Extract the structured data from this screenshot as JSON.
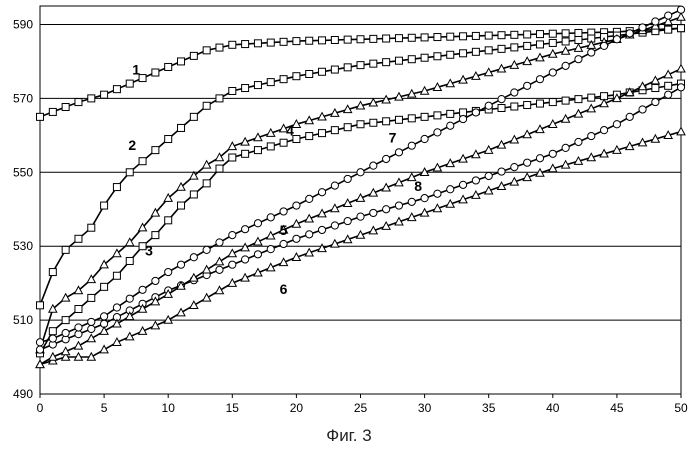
{
  "caption": "Фиг. 3",
  "chart_data": {
    "type": "line",
    "title": "",
    "xlabel": "",
    "ylabel": "",
    "xlim": [
      0,
      50
    ],
    "ylim": [
      490,
      595
    ],
    "x_ticks": [
      0,
      5,
      10,
      15,
      20,
      25,
      30,
      35,
      40,
      45,
      50
    ],
    "y_ticks": [
      490,
      510,
      530,
      550,
      570,
      590
    ],
    "grid": "horizontal",
    "legend": "none",
    "colors": {
      "line": "#000000",
      "grid": "#000000",
      "marker_fill": "#ffffff"
    },
    "series": [
      {
        "name": "1",
        "marker": "square",
        "x": [
          0,
          1.5,
          3,
          5,
          7,
          9,
          11,
          13,
          15,
          20,
          25,
          30,
          35,
          40,
          45,
          50
        ],
        "y": [
          565,
          567,
          569,
          571,
          574,
          577,
          580,
          583,
          584.5,
          585.5,
          586,
          586.5,
          587,
          587.5,
          588,
          589
        ]
      },
      {
        "name": "2",
        "marker": "square",
        "x": [
          0,
          1,
          2,
          3,
          4,
          5,
          6,
          7,
          8,
          9,
          10,
          11,
          12,
          13,
          14,
          15,
          20,
          25,
          30,
          35,
          40,
          45,
          50
        ],
        "y": [
          514,
          523,
          529,
          532,
          535,
          541,
          546,
          550,
          553,
          556,
          559,
          562,
          565,
          568,
          570,
          572,
          576,
          579,
          581,
          583,
          585,
          587,
          589
        ]
      },
      {
        "name": "3",
        "marker": "square",
        "x": [
          0,
          1,
          2,
          3,
          4,
          5,
          6,
          7,
          8,
          9,
          10,
          11,
          12,
          13,
          14,
          15,
          20,
          25,
          30,
          35,
          40,
          45,
          50
        ],
        "y": [
          501,
          507,
          510,
          513,
          516,
          519,
          522,
          526,
          530,
          533,
          537,
          541,
          544,
          547,
          551,
          554,
          559,
          563,
          565,
          567,
          569,
          571,
          574
        ]
      },
      {
        "name": "4",
        "marker": "triangle",
        "x": [
          0,
          1,
          2,
          3,
          4,
          5,
          6,
          7,
          8,
          9,
          10,
          11,
          12,
          13,
          14,
          15,
          20,
          25,
          30,
          35,
          40,
          45,
          50
        ],
        "y": [
          502,
          513,
          516,
          518,
          521,
          525,
          528,
          531,
          535,
          539,
          543,
          546,
          549,
          552,
          554,
          557,
          563,
          568,
          572,
          577,
          582,
          586,
          592
        ]
      },
      {
        "name": "5",
        "marker": "circle",
        "x": [
          0,
          5,
          10,
          15,
          20,
          25,
          30,
          35,
          40,
          45,
          50
        ],
        "y": [
          502,
          509,
          518,
          525,
          532,
          538,
          543,
          549,
          555,
          563,
          573
        ]
      },
      {
        "name": "6",
        "marker": "triangle",
        "x": [
          0,
          2,
          4,
          6,
          10,
          15,
          20,
          25,
          30,
          35,
          40,
          45,
          50
        ],
        "y": [
          498,
          500,
          500,
          504,
          510,
          520,
          527,
          533,
          539,
          545,
          551,
          556,
          561
        ]
      },
      {
        "name": "7",
        "marker": "circle",
        "x": [
          0,
          1,
          3,
          5,
          10,
          15,
          20,
          25,
          30,
          35,
          40,
          45,
          50
        ],
        "y": [
          504,
          505,
          508,
          511,
          523,
          533,
          541,
          550,
          559,
          568,
          577,
          586,
          594
        ]
      },
      {
        "name": "8",
        "marker": "triangle",
        "x": [
          0,
          1,
          3,
          5,
          10,
          15,
          20,
          25,
          30,
          35,
          40,
          45,
          50
        ],
        "y": [
          498,
          500,
          503,
          507,
          517,
          528,
          536,
          543,
          550,
          556,
          563,
          570,
          578
        ]
      }
    ],
    "series_labels": [
      {
        "text": "1",
        "x": 7.5,
        "y": 576.5
      },
      {
        "text": "2",
        "x": 7.2,
        "y": 556
      },
      {
        "text": "3",
        "x": 8.5,
        "y": 527.5
      },
      {
        "text": "4",
        "x": 19.5,
        "y": 560
      },
      {
        "text": "5",
        "x": 19,
        "y": 533
      },
      {
        "text": "6",
        "x": 19,
        "y": 517
      },
      {
        "text": "7",
        "x": 27.5,
        "y": 558
      },
      {
        "text": "8",
        "x": 29.5,
        "y": 545
      }
    ]
  }
}
